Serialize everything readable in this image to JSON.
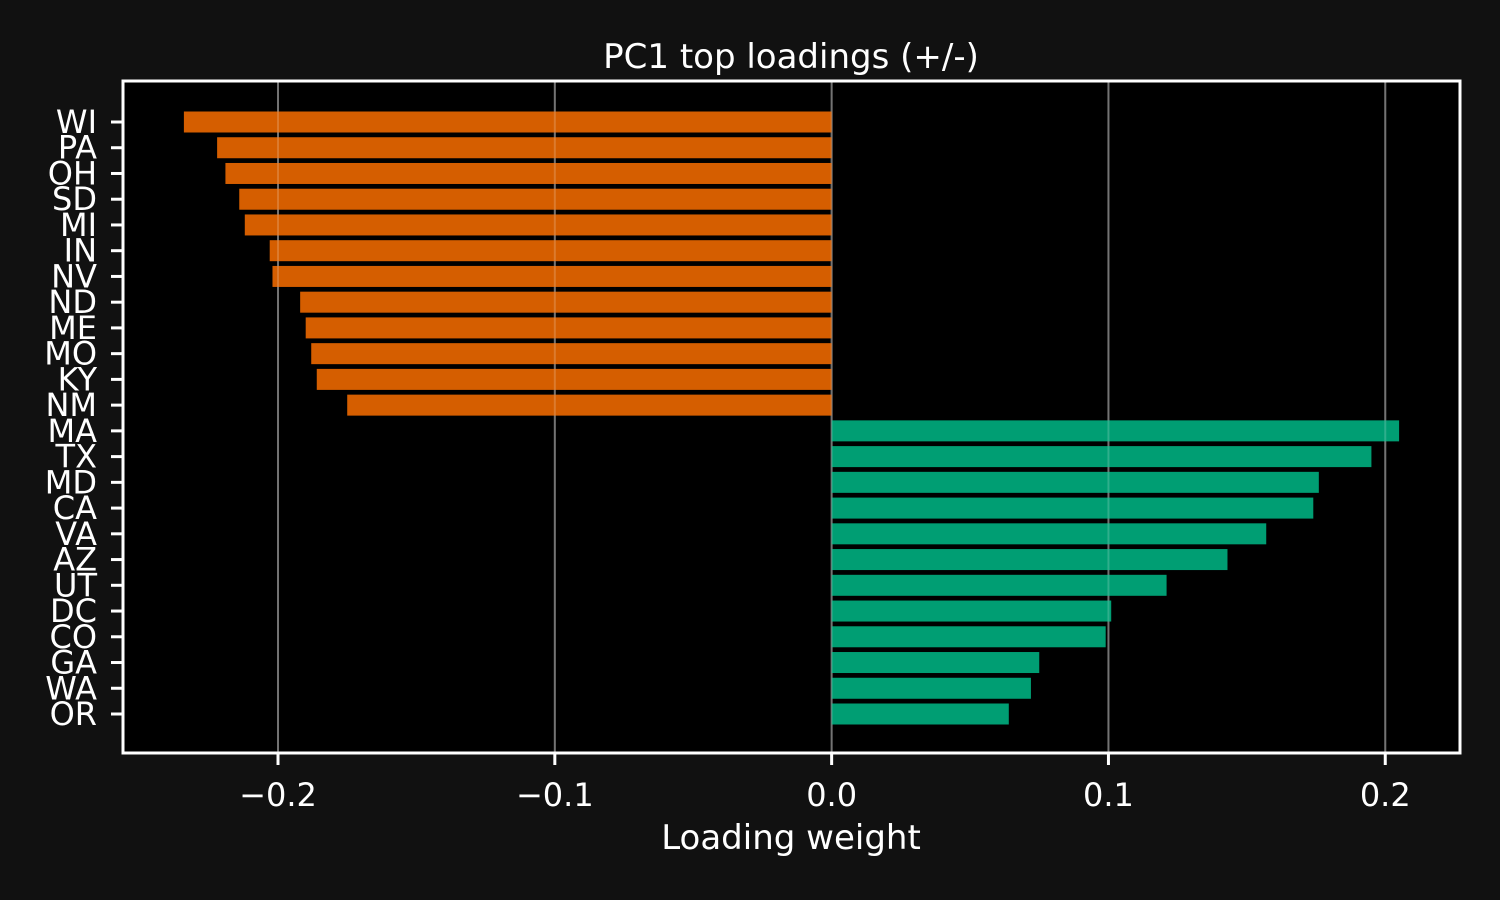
{
  "chart_data": {
    "type": "bar",
    "orientation": "horizontal",
    "title": "PC1 top loadings (+/-)",
    "xlabel": "Loading weight",
    "ylabel": "",
    "xlim": [
      -0.256,
      0.227
    ],
    "xticks": [
      -0.2,
      -0.1,
      0.0,
      0.1,
      0.2
    ],
    "xtick_labels": [
      "−0.2",
      "−0.1",
      "0.0",
      "0.1",
      "0.2"
    ],
    "grid": "vertical",
    "legend": "none",
    "colors": {
      "negative": "#d55e00",
      "positive": "#009e73",
      "page_background": "#111111",
      "plot_background": "#000000",
      "axes": "#ffffff",
      "grid": "#555555"
    },
    "categories": [
      "WI",
      "PA",
      "OH",
      "SD",
      "MI",
      "IN",
      "NV",
      "ND",
      "ME",
      "MO",
      "KY",
      "NM",
      "MA",
      "TX",
      "MD",
      "CA",
      "VA",
      "AZ",
      "UT",
      "DC",
      "CO",
      "GA",
      "WA",
      "OR"
    ],
    "values": [
      -0.234,
      -0.222,
      -0.219,
      -0.214,
      -0.212,
      -0.203,
      -0.202,
      -0.192,
      -0.19,
      -0.188,
      -0.186,
      -0.175,
      0.205,
      0.195,
      0.176,
      0.174,
      0.157,
      0.143,
      0.121,
      0.101,
      0.099,
      0.075,
      0.072,
      0.064
    ]
  }
}
